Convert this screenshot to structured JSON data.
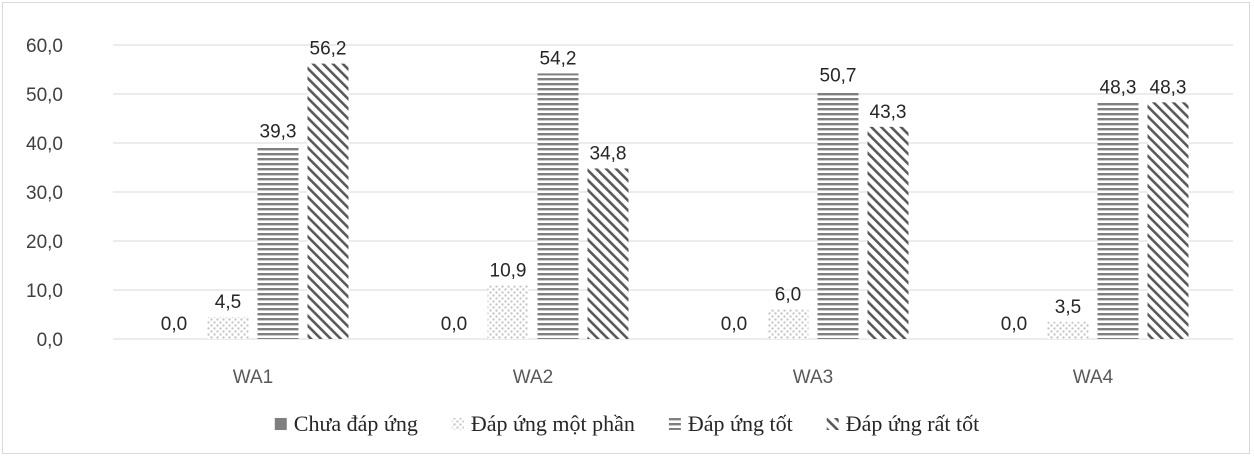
{
  "chart_data": {
    "type": "bar",
    "categories": [
      "WA1",
      "WA2",
      "WA3",
      "WA4"
    ],
    "series": [
      {
        "name": "Chưa đáp ứng",
        "values": [
          0.0,
          0.0,
          0.0,
          0.0
        ],
        "pattern": "solid"
      },
      {
        "name": "Đáp ứng một phần",
        "values": [
          4.5,
          10.9,
          6.0,
          3.5
        ],
        "pattern": "dots"
      },
      {
        "name": "Đáp ứng tốt",
        "values": [
          39.3,
          54.2,
          50.7,
          48.3
        ],
        "pattern": "horizontal"
      },
      {
        "name": "Đáp ứng rất tốt",
        "values": [
          56.2,
          34.8,
          43.3,
          48.3
        ],
        "pattern": "diagonal"
      }
    ],
    "data_labels": [
      [
        "0,0",
        "0,0",
        "0,0",
        "0,0"
      ],
      [
        "4,5",
        "10,9",
        "6,0",
        "3,5"
      ],
      [
        "39,3",
        "54,2",
        "50,7",
        "48,3"
      ],
      [
        "56,2",
        "34,8",
        "43,3",
        "48,3"
      ]
    ],
    "yticks": [
      "0,0",
      "10,0",
      "20,0",
      "30,0",
      "40,0",
      "50,0",
      "60,0"
    ],
    "ylim": [
      0,
      60
    ],
    "grid": true,
    "legend": "bottom",
    "title": "",
    "xlabel": "",
    "ylabel": "",
    "colors": {
      "grid": "#d9d9d9",
      "pattern": "#7f7f7f",
      "dots": "#c8c8c8",
      "text": "#262626"
    }
  }
}
